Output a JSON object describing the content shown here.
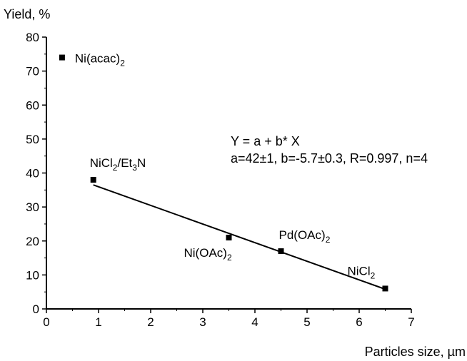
{
  "chart_data": {
    "type": "scatter",
    "title": "",
    "xlabel": "Particles size, µm",
    "ylabel": "Yield, %",
    "xlim": [
      0,
      7
    ],
    "ylim": [
      0,
      80
    ],
    "xticks": [
      "0",
      "1",
      "2",
      "3",
      "4",
      "5",
      "6",
      "7"
    ],
    "yticks": [
      "0",
      "10",
      "20",
      "30",
      "40",
      "50",
      "60",
      "70",
      "80"
    ],
    "grid": false,
    "points": [
      {
        "label": "Ni(acac)",
        "sub": "2",
        "suffix": "",
        "x": 0.3,
        "y": 74
      },
      {
        "label": "NiCl",
        "sub": "2",
        "suffix": "/Et",
        "sub2": "3",
        "suffix2": "N",
        "x": 0.9,
        "y": 38
      },
      {
        "label": "Ni(OAc)",
        "sub": "2",
        "suffix": "",
        "x": 3.5,
        "y": 21
      },
      {
        "label": "Pd(OAc)",
        "sub": "2",
        "suffix": "",
        "x": 4.5,
        "y": 17
      },
      {
        "label": "NiCl",
        "sub": "2",
        "suffix": "",
        "x": 6.5,
        "y": 6
      }
    ],
    "fit_line": {
      "x": [
        0.9,
        6.5
      ],
      "y": [
        36.5,
        5.8
      ]
    },
    "annotation": {
      "line1": "Y = a + b* X",
      "line2": "a=42±1, b=-5.7±0.3, R=0.997, n=4"
    }
  }
}
